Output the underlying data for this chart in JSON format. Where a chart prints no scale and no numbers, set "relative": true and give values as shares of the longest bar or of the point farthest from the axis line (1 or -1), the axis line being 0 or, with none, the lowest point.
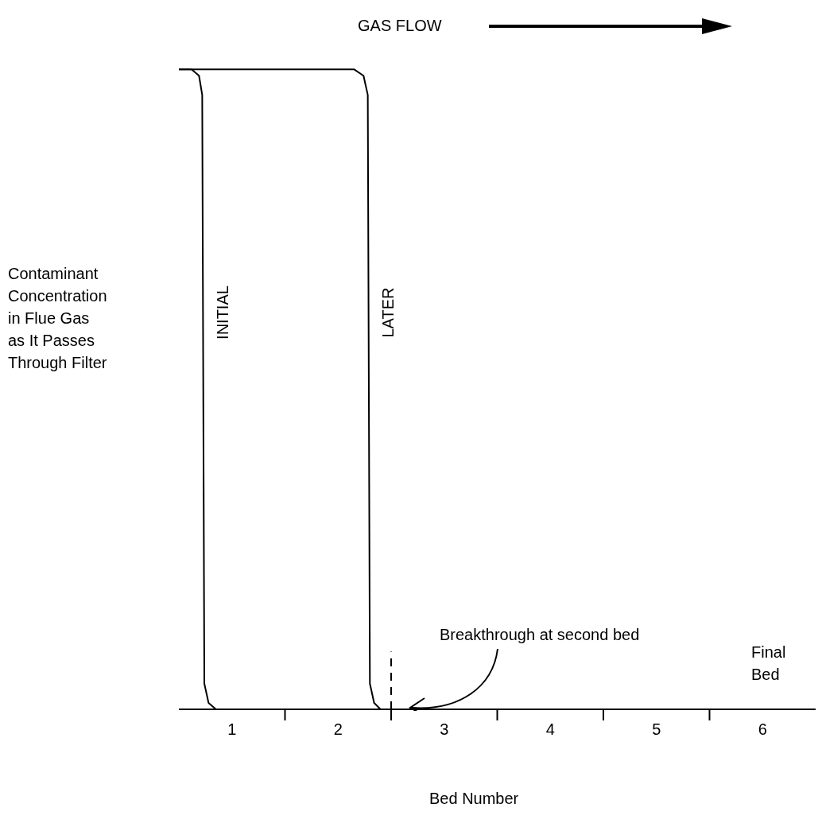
{
  "chart_data": {
    "type": "line",
    "relative": true,
    "xlabel": "Bed Number",
    "ylabel": "Contaminant\nConcentration\nin Flue Gas\nas It Passes\nThrough Filter",
    "xlim": [
      0,
      6
    ],
    "xticks": [
      {
        "value": 0.5,
        "label": "1"
      },
      {
        "value": 1,
        "label": null
      },
      {
        "value": 1.5,
        "label": "2"
      },
      {
        "value": 2,
        "label": null
      },
      {
        "value": 2.5,
        "label": "3"
      },
      {
        "value": 3,
        "label": null
      },
      {
        "value": 3.5,
        "label": "4"
      },
      {
        "value": 4,
        "label": null
      },
      {
        "value": 4.5,
        "label": "5"
      },
      {
        "value": 5,
        "label": null
      },
      {
        "value": 5.5,
        "label": "6"
      }
    ],
    "series": [
      {
        "name": "INITIAL",
        "color": "#000000",
        "x": [
          0,
          0.12,
          0.19,
          0.22,
          0.23,
          0.24,
          0.28,
          0.35,
          0.48
        ],
        "values": [
          1,
          1,
          0.99,
          0.96,
          0.5,
          0.04,
          0.01,
          0,
          0
        ]
      },
      {
        "name": "LATER",
        "color": "#000000",
        "x": [
          0,
          1.65,
          1.74,
          1.78,
          1.79,
          1.8,
          1.84,
          1.9,
          2.0
        ],
        "values": [
          1,
          1,
          0.99,
          0.96,
          0.5,
          0.04,
          0.01,
          0,
          0
        ]
      }
    ],
    "ref_lines": [
      {
        "axis": "x",
        "value": 2,
        "color": "#000000",
        "line_style": "dashed"
      }
    ],
    "annotations": [
      "GAS FLOW",
      "Breakthrough at second bed",
      "Final\nBed"
    ],
    "grid": false,
    "legend": false,
    "marker": "none",
    "line_style": "solid"
  }
}
